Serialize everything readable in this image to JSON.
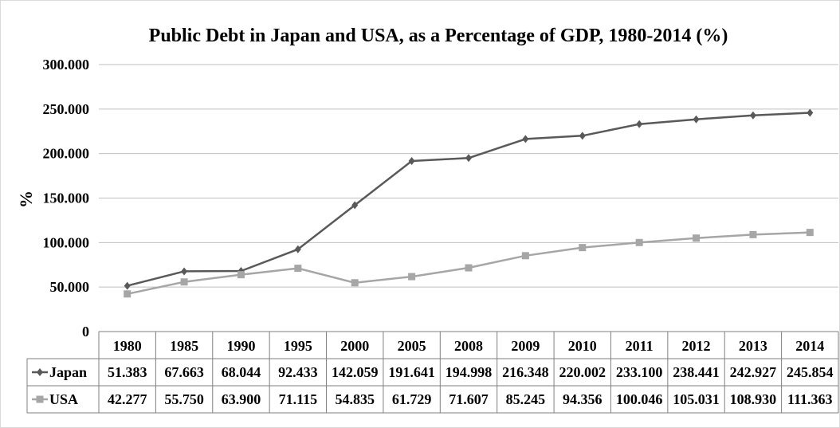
{
  "chart_data": {
    "type": "line",
    "title": "Public Debt in Japan and USA, as a Percentage of GDP, 1980-2014 (%)",
    "xlabel": "",
    "ylabel": "%",
    "ylim": [
      0,
      300
    ],
    "ytick_labels": [
      "0",
      "50.000",
      "100.000",
      "150.000",
      "200.000",
      "250.000",
      "300.000"
    ],
    "grid": true,
    "legend": "data-table",
    "categories": [
      "1980",
      "1985",
      "1990",
      "1995",
      "2000",
      "2005",
      "2008",
      "2009",
      "2010",
      "2011",
      "2012",
      "2013",
      "2014"
    ],
    "series": [
      {
        "name": "Japan",
        "marker": "diamond",
        "color": "#595959",
        "values": [
          51.383,
          67.663,
          68.044,
          92.433,
          142.059,
          191.641,
          194.998,
          216.348,
          220.002,
          233.1,
          238.441,
          242.927,
          245.854
        ],
        "labels": [
          "51.383",
          "67.663",
          "68.044",
          "92.433",
          "142.059",
          "191.641",
          "194.998",
          "216.348",
          "220.002",
          "233.100",
          "238.441",
          "242.927",
          "245.854"
        ]
      },
      {
        "name": "USA",
        "marker": "square",
        "color": "#a6a6a6",
        "values": [
          42.277,
          55.75,
          63.9,
          71.115,
          54.835,
          61.729,
          71.607,
          85.245,
          94.356,
          100.046,
          105.031,
          108.93,
          111.363
        ],
        "labels": [
          "42.277",
          "55.750",
          "63.900",
          "71.115",
          "54.835",
          "61.729",
          "71.607",
          "85.245",
          "94.356",
          "100.046",
          "105.031",
          "108.930",
          "111.363"
        ]
      }
    ]
  }
}
